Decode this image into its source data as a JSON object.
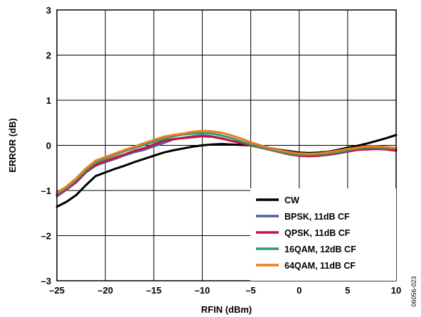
{
  "figure_id": "06056-023",
  "chart_data": {
    "type": "line",
    "xlabel": "RFIN (dBm)",
    "ylabel": "ERROR (dB)",
    "xlim": [
      -25,
      10
    ],
    "ylim": [
      -3,
      3
    ],
    "xticks": [
      -25,
      -20,
      -15,
      -10,
      -5,
      0,
      5,
      10
    ],
    "yticks": [
      -3,
      -2,
      -1,
      0,
      1,
      2,
      3
    ],
    "xtick_labels": [
      "–25",
      "–20",
      "–15",
      "–10",
      "–5",
      "0",
      "5",
      "10"
    ],
    "ytick_labels": [
      "–3",
      "–2",
      "–1",
      "0",
      "1",
      "2",
      "3"
    ],
    "grid": true,
    "legend_position": "bottom-right",
    "x": [
      -25,
      -24,
      -23,
      -22,
      -21,
      -20,
      -19,
      -18,
      -17,
      -16,
      -15,
      -14,
      -13,
      -12,
      -11,
      -10,
      -9,
      -8,
      -7,
      -6,
      -5,
      -4,
      -3,
      -2,
      -1,
      0,
      1,
      2,
      3,
      4,
      5,
      6,
      7,
      8,
      9,
      10
    ],
    "series": [
      {
        "name": "CW",
        "color": "#000000",
        "values": [
          -1.36,
          -1.25,
          -1.1,
          -0.88,
          -0.68,
          -0.6,
          -0.52,
          -0.45,
          -0.37,
          -0.3,
          -0.23,
          -0.16,
          -0.11,
          -0.07,
          -0.03,
          0.0,
          0.02,
          0.03,
          0.02,
          0.01,
          0.0,
          -0.03,
          -0.06,
          -0.1,
          -0.13,
          -0.16,
          -0.17,
          -0.16,
          -0.14,
          -0.1,
          -0.05,
          -0.01,
          0.04,
          0.1,
          0.16,
          0.23
        ]
      },
      {
        "name": "BPSK, 11dB CF",
        "color": "#4a5fa8",
        "values": [
          -1.13,
          -0.98,
          -0.82,
          -0.6,
          -0.45,
          -0.37,
          -0.3,
          -0.22,
          -0.15,
          -0.1,
          -0.02,
          0.05,
          0.13,
          0.17,
          0.2,
          0.22,
          0.2,
          0.16,
          0.1,
          0.05,
          0.0,
          -0.05,
          -0.1,
          -0.15,
          -0.2,
          -0.23,
          -0.24,
          -0.23,
          -0.21,
          -0.18,
          -0.14,
          -0.1,
          -0.08,
          -0.07,
          -0.08,
          -0.1
        ]
      },
      {
        "name": "QPSK, 11dB CF",
        "color": "#cc1044",
        "values": [
          -1.1,
          -0.97,
          -0.8,
          -0.58,
          -0.43,
          -0.35,
          -0.27,
          -0.2,
          -0.12,
          -0.06,
          0.02,
          0.1,
          0.14,
          0.16,
          0.18,
          0.2,
          0.19,
          0.15,
          0.1,
          0.05,
          0.0,
          -0.05,
          -0.1,
          -0.15,
          -0.2,
          -0.23,
          -0.24,
          -0.23,
          -0.2,
          -0.17,
          -0.13,
          -0.1,
          -0.09,
          -0.08,
          -0.09,
          -0.12
        ]
      },
      {
        "name": "16QAM, 12dB CF",
        "color": "#2e9e6a",
        "values": [
          -1.08,
          -0.94,
          -0.76,
          -0.55,
          -0.38,
          -0.3,
          -0.21,
          -0.13,
          -0.06,
          0.01,
          0.08,
          0.14,
          0.2,
          0.24,
          0.26,
          0.27,
          0.26,
          0.22,
          0.16,
          0.09,
          0.02,
          -0.04,
          -0.09,
          -0.14,
          -0.18,
          -0.21,
          -0.21,
          -0.2,
          -0.18,
          -0.15,
          -0.11,
          -0.07,
          -0.05,
          -0.05,
          -0.06,
          -0.07
        ]
      },
      {
        "name": "64QAM, 11dB CF",
        "color": "#f07a1a",
        "values": [
          -1.05,
          -0.91,
          -0.73,
          -0.51,
          -0.34,
          -0.26,
          -0.18,
          -0.1,
          -0.03,
          0.05,
          0.12,
          0.19,
          0.23,
          0.26,
          0.3,
          0.32,
          0.31,
          0.28,
          0.22,
          0.15,
          0.07,
          0.0,
          -0.06,
          -0.11,
          -0.15,
          -0.18,
          -0.19,
          -0.18,
          -0.15,
          -0.12,
          -0.08,
          -0.05,
          -0.02,
          -0.02,
          -0.04,
          -0.06
        ]
      }
    ]
  }
}
